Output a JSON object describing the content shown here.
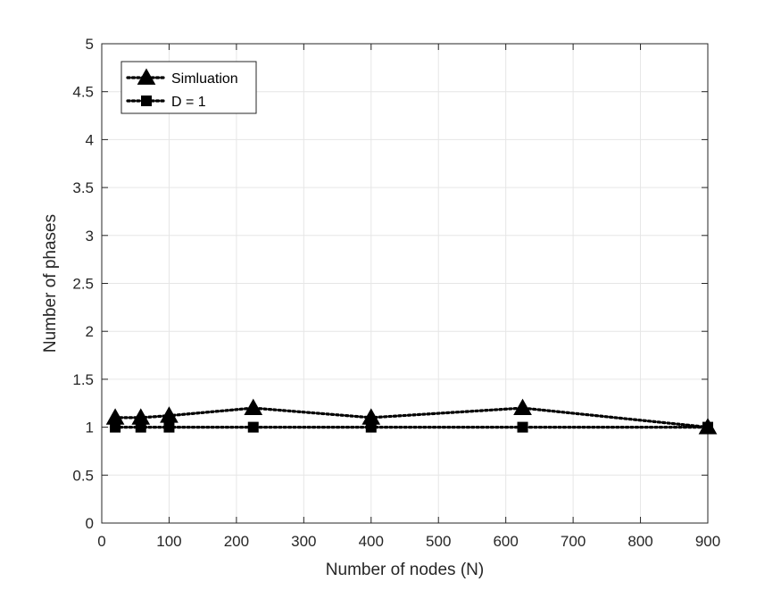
{
  "chart_data": {
    "type": "line",
    "xlabel": "Number of nodes (N)",
    "ylabel": "Number of phases",
    "xlim": [
      0,
      900
    ],
    "ylim": [
      0,
      5
    ],
    "xticks": [
      0,
      100,
      200,
      300,
      400,
      500,
      600,
      700,
      800,
      900
    ],
    "yticks": [
      0,
      0.5,
      1,
      1.5,
      2,
      2.5,
      3,
      3.5,
      4,
      4.5,
      5
    ],
    "grid": true,
    "legend_position": "top-left",
    "series": [
      {
        "name": "Simluation",
        "marker": "triangle",
        "line_style": "dotted",
        "color": "#000000",
        "x": [
          20,
          58,
          100,
          225,
          400,
          625,
          900
        ],
        "y": [
          1.1,
          1.1,
          1.12,
          1.2,
          1.1,
          1.2,
          1.0
        ]
      },
      {
        "name": "D = 1",
        "marker": "square",
        "line_style": "dotted",
        "color": "#000000",
        "x": [
          20,
          58,
          100,
          225,
          400,
          625,
          900
        ],
        "y": [
          1.0,
          1.0,
          1.0,
          1.0,
          1.0,
          1.0,
          1.0
        ]
      }
    ]
  }
}
